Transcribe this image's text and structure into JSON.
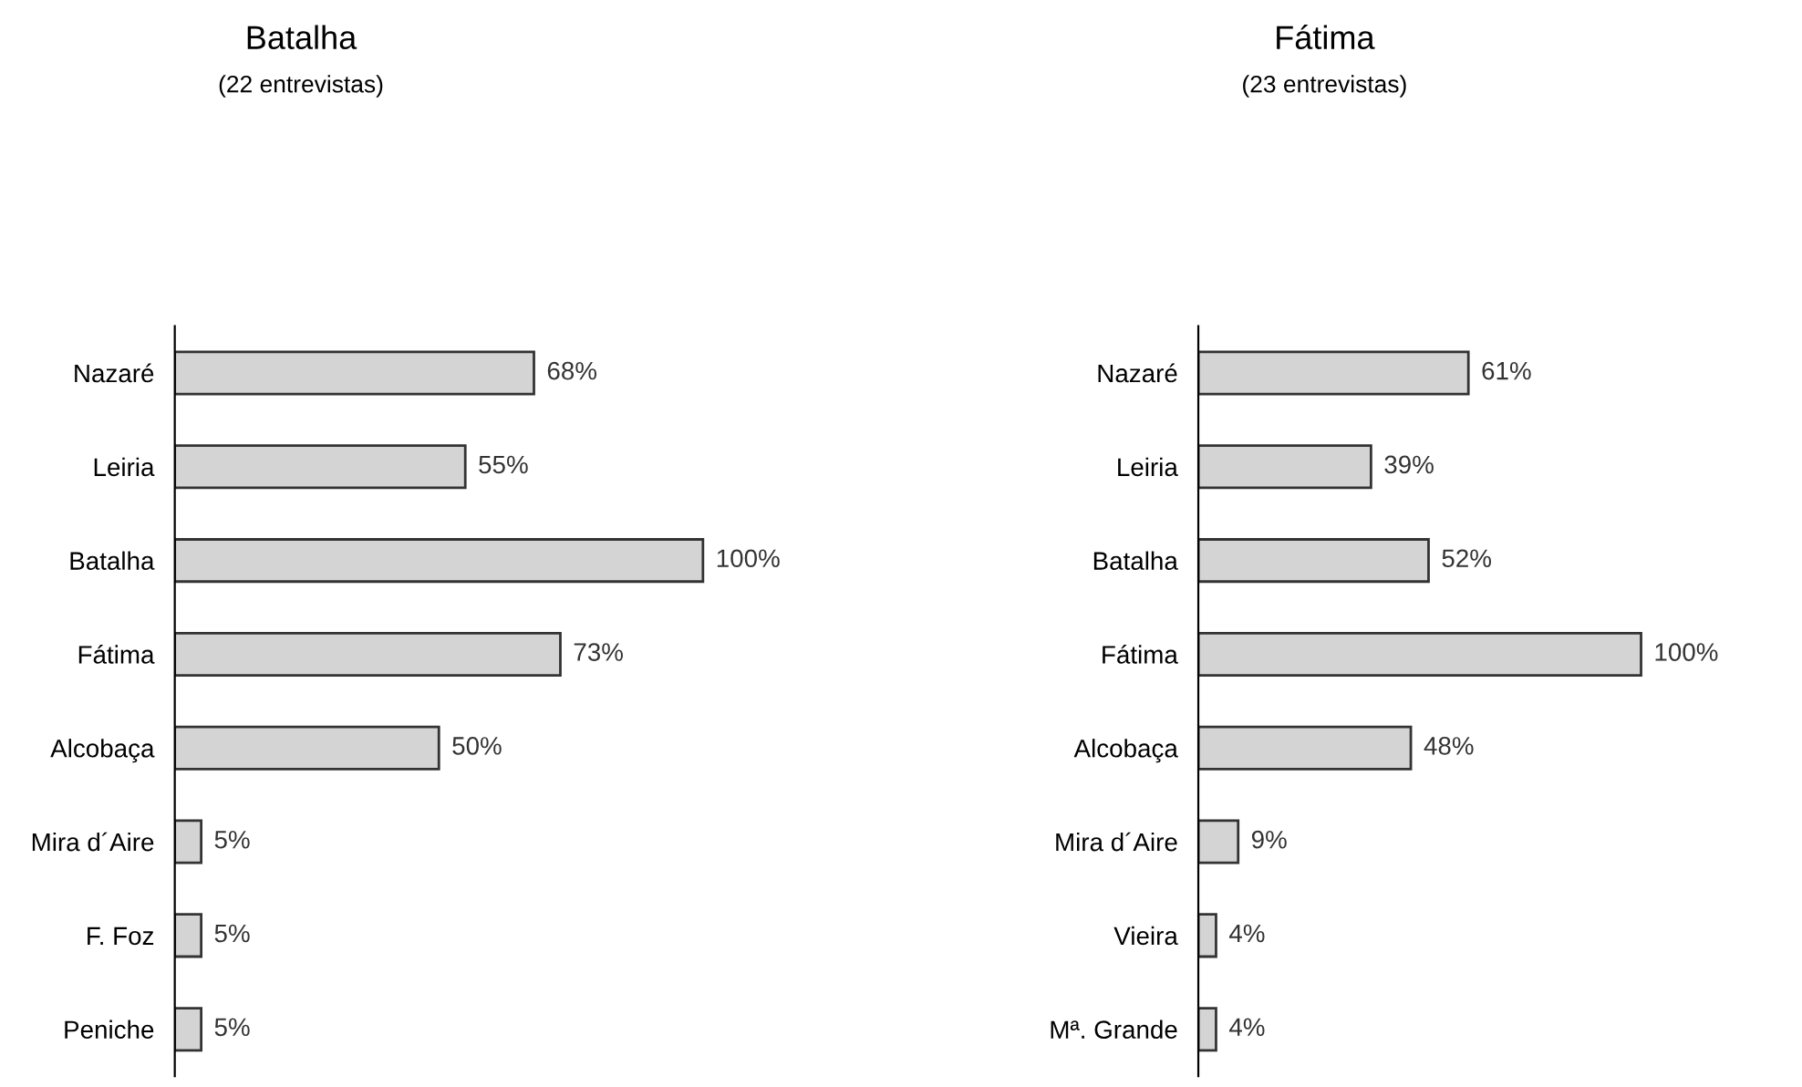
{
  "chart_data": [
    {
      "type": "bar",
      "orientation": "horizontal",
      "title": "Batalha",
      "subtitle": "(22 entrevistas)",
      "categories": [
        "Nazaré",
        "Leiria",
        "Batalha",
        "Fátima",
        "Alcobaça",
        "Mira d´Aire",
        "F. Foz",
        "Peniche"
      ],
      "values": [
        68,
        55,
        100,
        73,
        50,
        5,
        5,
        5
      ],
      "color": "#d4d4d4",
      "value_labels": [
        "68%",
        "55%",
        "100%",
        "73%",
        "50%",
        "5%",
        "5%",
        "5%"
      ],
      "tick_labels": "y"
    },
    {
      "type": "bar",
      "orientation": "horizontal",
      "title": "Fátima",
      "subtitle": "(23 entrevistas)",
      "categories": [
        "Nazaré",
        "Leiria",
        "Batalha",
        "Fátima",
        "Alcobaça",
        "Mira d´Aire",
        "Vieira",
        "Mª. Grande"
      ],
      "values": [
        61,
        39,
        52,
        100,
        48,
        9,
        4,
        4
      ],
      "color": "#d4d4d4",
      "value_labels": [
        "61%",
        "39%",
        "52%",
        "100%",
        "48%",
        "9%",
        "4%",
        "4%"
      ],
      "tick_labels": "y"
    }
  ]
}
